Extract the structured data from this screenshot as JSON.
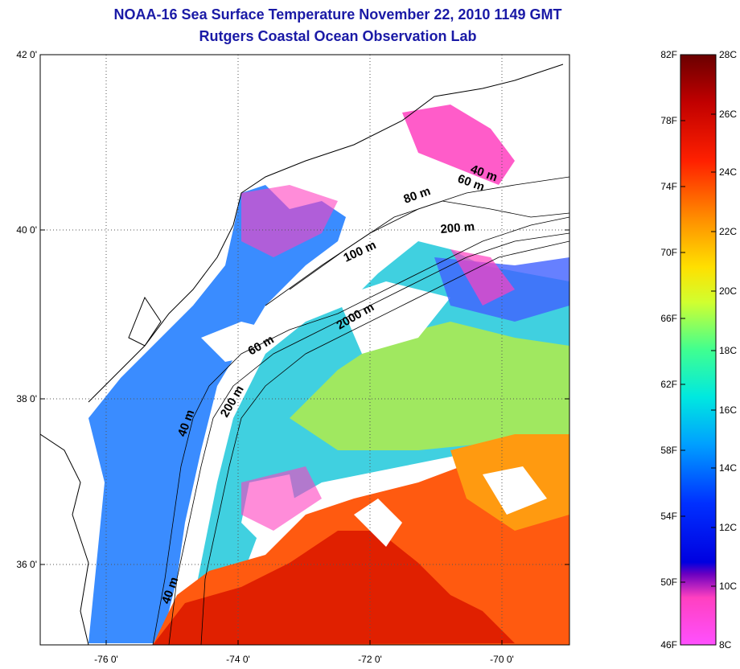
{
  "header": {
    "title": "NOAA-16 Sea Surface Temperature November 22, 2010 1149 GMT",
    "subtitle": "Rutgers Coastal Ocean Observation Lab"
  },
  "map": {
    "lat_ticks": [
      "42 0'",
      "40 0'",
      "38 0'",
      "36 0'"
    ],
    "lon_ticks": [
      "-76 0'",
      "-74 0'",
      "-72 0'",
      "-70 0'"
    ],
    "grid": true,
    "contour_labels": [
      "40 m",
      "60 m",
      "80 m",
      "100 m",
      "200 m",
      "2000 m",
      "60 m",
      "200 m",
      "40 m",
      "40 m"
    ]
  },
  "colorbar": {
    "fahrenheit_labels": [
      "82F",
      "78F",
      "74F",
      "70F",
      "66F",
      "62F",
      "58F",
      "54F",
      "50F",
      "46F"
    ],
    "celsius_labels": [
      "28C",
      "26C",
      "24C",
      "22C",
      "20C",
      "18C",
      "16C",
      "14C",
      "12C",
      "10C",
      "8C"
    ],
    "colors": [
      "#7a0000",
      "#d00000",
      "#ff3000",
      "#ff8000",
      "#ffd000",
      "#ffff00",
      "#a0ff40",
      "#00f0c0",
      "#00c0ff",
      "#0060ff",
      "#0000ff",
      "#5000d0",
      "#ff40c0",
      "#ff50ff"
    ]
  }
}
